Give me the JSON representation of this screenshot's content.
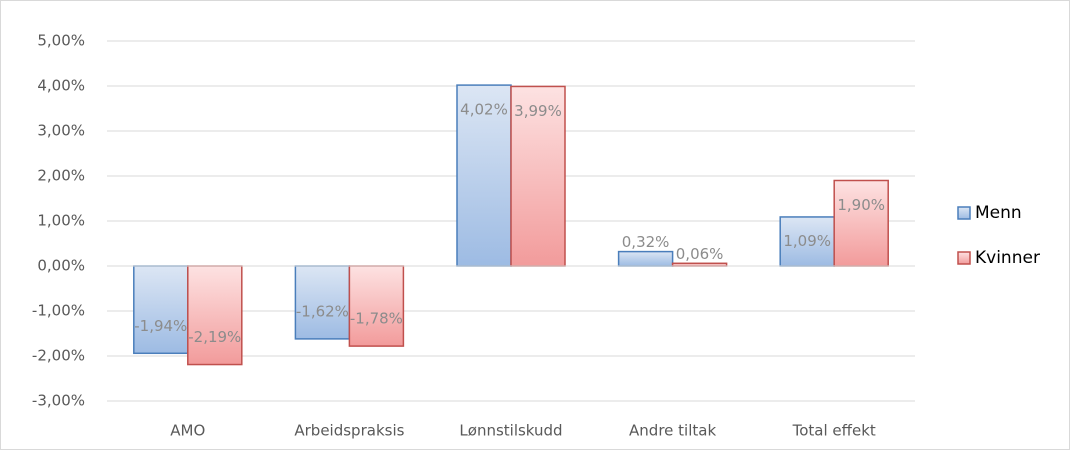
{
  "chart_data": {
    "type": "bar",
    "categories": [
      "AMO",
      "Arbeidspraksis",
      "Lønnstilskudd",
      "Andre tiltak",
      "Total effekt"
    ],
    "series": [
      {
        "name": "Menn",
        "color": "#4a7ebb",
        "values": [
          -1.94,
          -1.62,
          4.02,
          0.32,
          1.09
        ],
        "value_labels": [
          "-1,94%",
          "-1,62%",
          "4,02%",
          "0,32%",
          "1,09%"
        ]
      },
      {
        "name": "Kvinner",
        "color": "#c0504d",
        "values": [
          -2.19,
          -1.78,
          3.99,
          0.06,
          1.9
        ],
        "value_labels": [
          "-2,19%",
          "-1,78%",
          "3,99%",
          "0,06%",
          "1,90%"
        ]
      }
    ],
    "ylim": [
      -3,
      5
    ],
    "yticks": [
      {
        "value": -3,
        "label": "-3,00%"
      },
      {
        "value": -2,
        "label": "-2,00%"
      },
      {
        "value": -1,
        "label": "-1,00%"
      },
      {
        "value": 0,
        "label": "0,00%"
      },
      {
        "value": 1,
        "label": "1,00%"
      },
      {
        "value": 2,
        "label": "2,00%"
      },
      {
        "value": 3,
        "label": "3,00%"
      },
      {
        "value": 4,
        "label": "4,00%"
      },
      {
        "value": 5,
        "label": "5,00%"
      }
    ],
    "grid": true,
    "legend": "right"
  }
}
